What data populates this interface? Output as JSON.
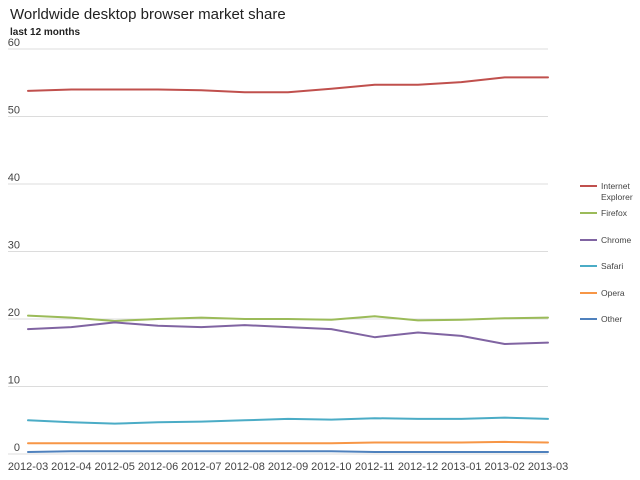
{
  "title": "Worldwide desktop browser market share",
  "subtitle": "last 12 months",
  "chart_data": {
    "type": "line",
    "title": "Worldwide desktop browser market share",
    "subtitle": "last 12 months",
    "xlabel": "",
    "ylabel": "",
    "ylim": [
      0,
      60
    ],
    "yticks": [
      0,
      10,
      20,
      30,
      40,
      50,
      60
    ],
    "grid": true,
    "legend_position": "right",
    "x": [
      "2012-03",
      "2012-04",
      "2012-05",
      "2012-06",
      "2012-07",
      "2012-08",
      "2012-09",
      "2012-10",
      "2012-11",
      "2012-12",
      "2013-01",
      "2013-02",
      "2013-03"
    ],
    "series": [
      {
        "name": "Internet Explorer",
        "legend_lines": [
          "Internet",
          "Explorer"
        ],
        "color": "#c0504d",
        "values": [
          53.8,
          54.0,
          54.0,
          54.0,
          53.9,
          53.6,
          53.6,
          54.1,
          54.7,
          54.7,
          55.1,
          55.8,
          55.8
        ]
      },
      {
        "name": "Firefox",
        "legend_lines": [
          "Firefox"
        ],
        "color": "#9bbb59",
        "values": [
          20.5,
          20.2,
          19.7,
          20.0,
          20.2,
          20.0,
          20.0,
          19.9,
          20.4,
          19.8,
          19.9,
          20.1,
          20.2
        ]
      },
      {
        "name": "Chrome",
        "legend_lines": [
          "Chrome"
        ],
        "color": "#8064a2",
        "values": [
          18.5,
          18.8,
          19.5,
          19.0,
          18.8,
          19.1,
          18.8,
          18.5,
          17.3,
          18.0,
          17.5,
          16.3,
          16.5
        ]
      },
      {
        "name": "Safari",
        "legend_lines": [
          "Safari"
        ],
        "color": "#4bacc6",
        "values": [
          5.0,
          4.7,
          4.5,
          4.7,
          4.8,
          5.0,
          5.2,
          5.1,
          5.3,
          5.2,
          5.2,
          5.4,
          5.2
        ]
      },
      {
        "name": "Opera",
        "legend_lines": [
          "Opera"
        ],
        "color": "#f79646",
        "values": [
          1.6,
          1.6,
          1.6,
          1.6,
          1.6,
          1.6,
          1.6,
          1.6,
          1.7,
          1.7,
          1.7,
          1.8,
          1.7
        ]
      },
      {
        "name": "Other",
        "legend_lines": [
          "Other"
        ],
        "color": "#4f81bd",
        "values": [
          0.3,
          0.4,
          0.4,
          0.4,
          0.4,
          0.4,
          0.4,
          0.4,
          0.3,
          0.3,
          0.3,
          0.3,
          0.3
        ]
      }
    ]
  }
}
